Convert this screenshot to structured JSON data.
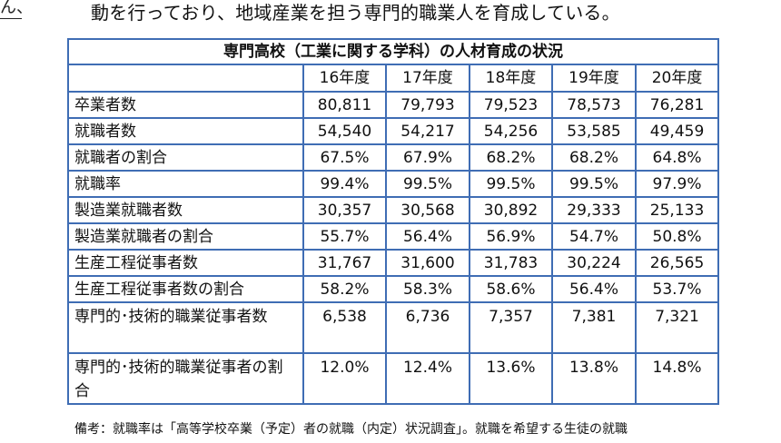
{
  "margin_fragment": "ん、",
  "intro_text": "動を行っており、地域産業を担う専門的職業人を育成している。",
  "table": {
    "caption": "専門高校（工業に関する学科）の人材育成の状況",
    "years": [
      "16年度",
      "17年度",
      "18年度",
      "19年度",
      "20年度"
    ],
    "rows": [
      {
        "label": "卒業者数",
        "values": [
          "80,811",
          "79,793",
          "79,523",
          "78,573",
          "76,281"
        ]
      },
      {
        "label": "就職者数",
        "values": [
          "54,540",
          "54,217",
          "54,256",
          "53,585",
          "49,459"
        ]
      },
      {
        "label": "就職者の割合",
        "values": [
          "67.5%",
          "67.9%",
          "68.2%",
          "68.2%",
          "64.8%"
        ]
      },
      {
        "label": "就職率",
        "values": [
          "99.4%",
          "99.5%",
          "99.5%",
          "99.5%",
          "97.9%"
        ]
      },
      {
        "label": "製造業就職者数",
        "values": [
          "30,357",
          "30,568",
          "30,892",
          "29,333",
          "25,133"
        ]
      },
      {
        "label": "製造業就職者の割合",
        "values": [
          "55.7%",
          "56.4%",
          "56.9%",
          "54.7%",
          "50.8%"
        ]
      },
      {
        "label": "生産工程従事者数",
        "values": [
          "31,767",
          "31,600",
          "31,783",
          "30,224",
          "26,565"
        ]
      },
      {
        "label": "生産工程従事者数の割合",
        "values": [
          "58.2%",
          "58.3%",
          "58.6%",
          "56.4%",
          "53.7%"
        ]
      },
      {
        "label": "専門的･技術的職業従事者数",
        "values": [
          "6,538",
          "6,736",
          "7,357",
          "7,381",
          "7,321"
        ]
      },
      {
        "label": "専門的･技術的職業従事者の割合",
        "values": [
          "12.0%",
          "12.4%",
          "13.6%",
          "13.8%",
          "14.8%"
        ]
      }
    ]
  },
  "note_text": "備考：就職率は「高等学校卒業（予定）者の就職（内定）状況調査」。就職を希望する生徒の就職",
  "colors": {
    "border": "#3f6db4",
    "text": "#111111",
    "background": "#ffffff"
  }
}
